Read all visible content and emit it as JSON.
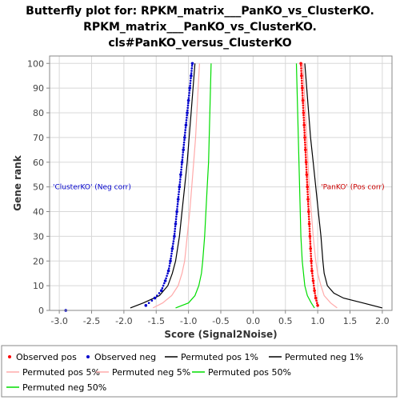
{
  "chart_data": {
    "type": "line",
    "title": [
      "Butterfly plot for: RPKM_matrix___PanKO_vs_ClusterKO.",
      "RPKM_matrix___PanKO_vs_ClusterKO.",
      "cls#PanKO_versus_ClusterKO"
    ],
    "xlabel": "Score (Signal2Noise)",
    "ylabel": "Gene rank",
    "xlim": [
      -3.15,
      2.15
    ],
    "ylim": [
      0,
      103
    ],
    "x_ticks": [
      "-3.0",
      "-2.5",
      "-2.0",
      "-1.5",
      "-1.0",
      "-0.5",
      "0.0",
      "0.5",
      "1.0",
      "1.5",
      "2.0"
    ],
    "y_ticks": [
      "0",
      "10",
      "20",
      "30",
      "40",
      "50",
      "60",
      "70",
      "80",
      "90",
      "100"
    ],
    "grid": true,
    "annotations": [
      {
        "text": "'ClusterKO' (Neg corr)",
        "color": "#0000cc",
        "x": -3.1,
        "y": 50
      },
      {
        "text": "'PanKO' (Pos corr)",
        "color": "#cc0000",
        "x": 1.05,
        "y": 50
      }
    ],
    "series": [
      {
        "name": "Observed pos",
        "style": "points",
        "color": "#ff0000",
        "points": [
          [
            0.74,
            100
          ],
          [
            0.75,
            95
          ],
          [
            0.76,
            90
          ],
          [
            0.77,
            85
          ],
          [
            0.78,
            80
          ],
          [
            0.79,
            75
          ],
          [
            0.8,
            70
          ],
          [
            0.81,
            65
          ],
          [
            0.82,
            60
          ],
          [
            0.83,
            55
          ],
          [
            0.84,
            50
          ],
          [
            0.85,
            45
          ],
          [
            0.86,
            40
          ],
          [
            0.87,
            35
          ],
          [
            0.88,
            30
          ],
          [
            0.89,
            25
          ],
          [
            0.9,
            20
          ],
          [
            0.91,
            16
          ],
          [
            0.93,
            12
          ],
          [
            0.95,
            8
          ],
          [
            0.97,
            5
          ],
          [
            1.0,
            2
          ]
        ]
      },
      {
        "name": "Observed neg",
        "style": "points",
        "color": "#0000cc",
        "points": [
          [
            -0.94,
            100
          ],
          [
            -0.96,
            95
          ],
          [
            -0.98,
            90
          ],
          [
            -1.0,
            85
          ],
          [
            -1.02,
            80
          ],
          [
            -1.04,
            75
          ],
          [
            -1.06,
            70
          ],
          [
            -1.08,
            65
          ],
          [
            -1.1,
            60
          ],
          [
            -1.12,
            55
          ],
          [
            -1.14,
            50
          ],
          [
            -1.16,
            45
          ],
          [
            -1.18,
            40
          ],
          [
            -1.2,
            35
          ],
          [
            -1.22,
            30
          ],
          [
            -1.25,
            25
          ],
          [
            -1.28,
            20
          ],
          [
            -1.31,
            16
          ],
          [
            -1.36,
            12
          ],
          [
            -1.42,
            8
          ],
          [
            -1.52,
            5
          ],
          [
            -1.66,
            2
          ],
          [
            -2.9,
            0
          ]
        ]
      },
      {
        "name": "Permuted pos 1%",
        "style": "line",
        "color": "#000000",
        "points": [
          [
            0.8,
            100
          ],
          [
            0.83,
            90
          ],
          [
            0.86,
            80
          ],
          [
            0.89,
            70
          ],
          [
            0.93,
            60
          ],
          [
            0.97,
            50
          ],
          [
            1.01,
            40
          ],
          [
            1.05,
            30
          ],
          [
            1.08,
            20
          ],
          [
            1.1,
            15
          ],
          [
            1.15,
            10
          ],
          [
            1.25,
            7
          ],
          [
            1.4,
            5
          ],
          [
            1.7,
            3
          ],
          [
            2.0,
            1
          ]
        ]
      },
      {
        "name": "Permuted neg 1%",
        "style": "line",
        "color": "#000000",
        "points": [
          [
            -0.9,
            100
          ],
          [
            -0.93,
            90
          ],
          [
            -0.96,
            80
          ],
          [
            -0.99,
            70
          ],
          [
            -1.02,
            60
          ],
          [
            -1.06,
            50
          ],
          [
            -1.1,
            40
          ],
          [
            -1.14,
            30
          ],
          [
            -1.2,
            20
          ],
          [
            -1.25,
            15
          ],
          [
            -1.32,
            10
          ],
          [
            -1.45,
            6
          ],
          [
            -1.7,
            3
          ],
          [
            -1.9,
            1
          ]
        ]
      },
      {
        "name": "Permuted pos 5%",
        "style": "line",
        "color": "#ffaaaa",
        "points": [
          [
            0.77,
            100
          ],
          [
            0.79,
            90
          ],
          [
            0.81,
            80
          ],
          [
            0.83,
            70
          ],
          [
            0.85,
            60
          ],
          [
            0.87,
            50
          ],
          [
            0.9,
            40
          ],
          [
            0.93,
            30
          ],
          [
            0.97,
            20
          ],
          [
            1.0,
            15
          ],
          [
            1.05,
            10
          ],
          [
            1.1,
            6
          ],
          [
            1.2,
            3
          ],
          [
            1.3,
            1
          ]
        ]
      },
      {
        "name": "Permuted neg 5%",
        "style": "line",
        "color": "#ffaaaa",
        "points": [
          [
            -0.83,
            100
          ],
          [
            -0.85,
            90
          ],
          [
            -0.87,
            80
          ],
          [
            -0.89,
            70
          ],
          [
            -0.92,
            60
          ],
          [
            -0.95,
            50
          ],
          [
            -0.98,
            40
          ],
          [
            -1.02,
            30
          ],
          [
            -1.06,
            20
          ],
          [
            -1.1,
            15
          ],
          [
            -1.16,
            10
          ],
          [
            -1.26,
            6
          ],
          [
            -1.4,
            3
          ],
          [
            -1.55,
            1
          ]
        ]
      },
      {
        "name": "Permuted pos 50%",
        "style": "line",
        "color": "#00dd00",
        "points": [
          [
            0.67,
            100
          ],
          [
            0.68,
            90
          ],
          [
            0.69,
            80
          ],
          [
            0.7,
            70
          ],
          [
            0.71,
            60
          ],
          [
            0.72,
            50
          ],
          [
            0.73,
            40
          ],
          [
            0.74,
            30
          ],
          [
            0.76,
            20
          ],
          [
            0.78,
            15
          ],
          [
            0.8,
            10
          ],
          [
            0.84,
            6
          ],
          [
            0.9,
            3
          ],
          [
            0.95,
            1
          ]
        ]
      },
      {
        "name": "Permuted neg 50%",
        "style": "line",
        "color": "#00dd00",
        "points": [
          [
            -0.65,
            100
          ],
          [
            -0.66,
            90
          ],
          [
            -0.67,
            80
          ],
          [
            -0.68,
            70
          ],
          [
            -0.69,
            60
          ],
          [
            -0.71,
            50
          ],
          [
            -0.73,
            40
          ],
          [
            -0.75,
            30
          ],
          [
            -0.78,
            20
          ],
          [
            -0.8,
            15
          ],
          [
            -0.84,
            10
          ],
          [
            -0.9,
            6
          ],
          [
            -1.0,
            3
          ],
          [
            -1.2,
            1
          ]
        ]
      }
    ]
  }
}
